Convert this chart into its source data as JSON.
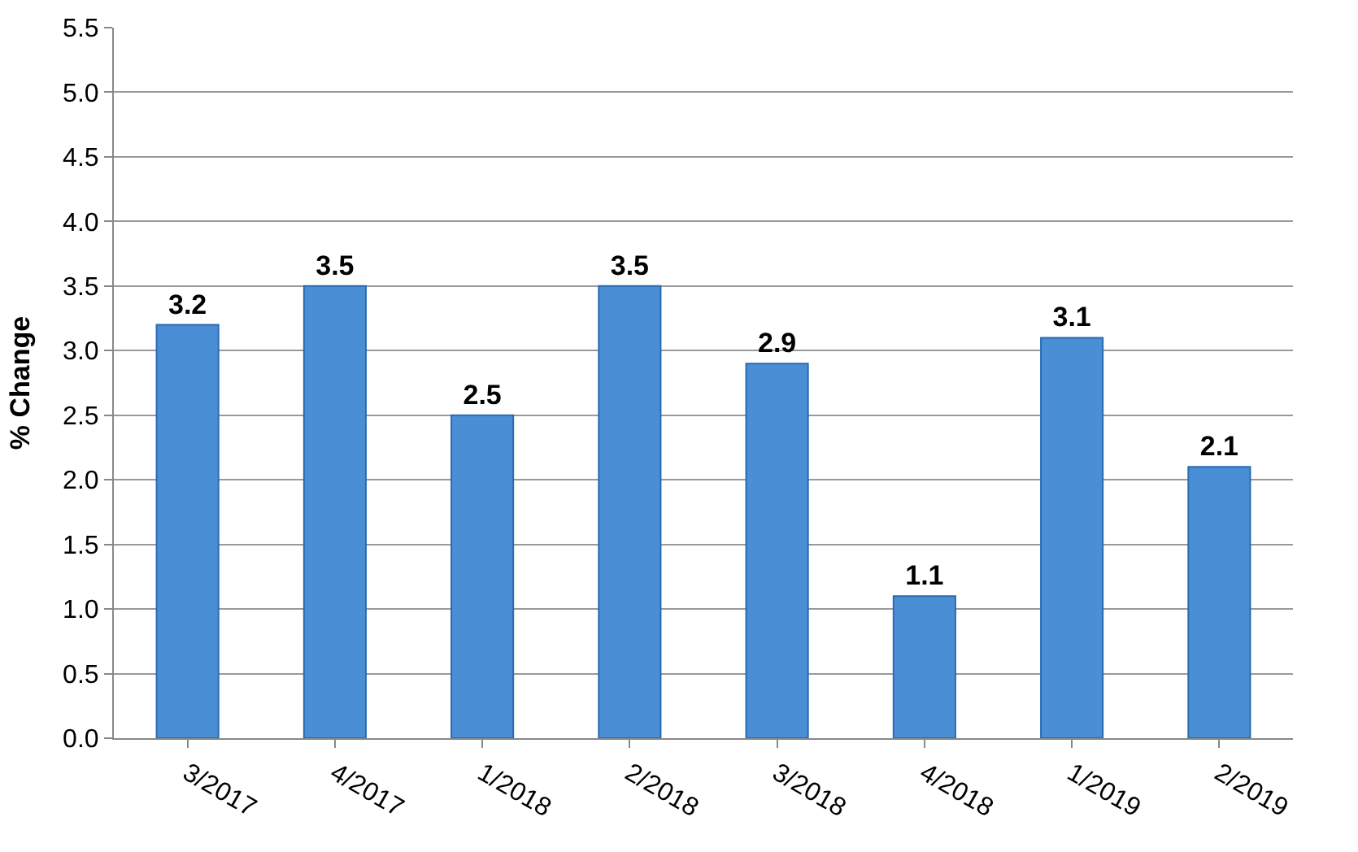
{
  "chart_data": {
    "type": "bar",
    "ylabel": "% Change",
    "categories": [
      "3/2017",
      "4/2017",
      "1/2018",
      "2/2018",
      "3/2018",
      "4/2018",
      "1/2019",
      "2/2019"
    ],
    "values": [
      3.2,
      3.5,
      2.5,
      3.5,
      2.9,
      1.1,
      3.1,
      2.1
    ],
    "color": "#4a8fd6",
    "data_labels": true,
    "grid": "y",
    "ylim": [
      0,
      5.5
    ],
    "yticks": [
      {
        "value": 0,
        "label": "0.0"
      },
      {
        "value": 0.5,
        "label": "0.5"
      },
      {
        "value": 1,
        "label": "1.0"
      },
      {
        "value": 1.5,
        "label": "1.5"
      },
      {
        "value": 2,
        "label": "2.0"
      },
      {
        "value": 2.5,
        "label": "2.5"
      },
      {
        "value": 3,
        "label": "3.0"
      },
      {
        "value": 3.5,
        "label": "3.5"
      },
      {
        "value": 4,
        "label": "4.0"
      },
      {
        "value": 4.5,
        "label": "4.5"
      },
      {
        "value": 5,
        "label": "5.0"
      },
      {
        "value": 5.5,
        "label": "5.5"
      }
    ]
  }
}
